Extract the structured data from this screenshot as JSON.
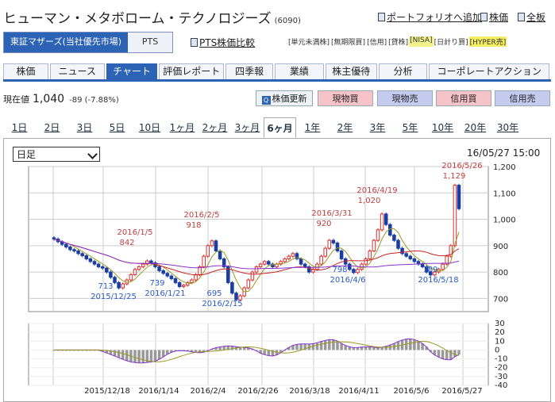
{
  "header": {
    "title": "ヒューマン・メタボローム・テクノロジーズ",
    "code": "(6090)",
    "links": [
      {
        "label": "ポートフォリオへ追加"
      },
      {
        "label": "株価"
      },
      {
        "label": "全板"
      }
    ]
  },
  "market_tabs": {
    "market": "東証マザーズ(当社優先市場)",
    "pts": "PTS"
  },
  "pts_link": "PTS株価比較",
  "badges": [
    "[単元未満株]",
    "[無期限買]",
    "[信用]",
    "[貸株]",
    "[NISA]",
    "[日計り買]",
    "[HYPER売]"
  ],
  "main_tabs": [
    "株価",
    "ニュース",
    "チャート",
    "評価レポート",
    "四季報",
    "業績",
    "株主優待",
    "分析",
    "コーポレートアクション"
  ],
  "active_main_tab": "チャート",
  "price": {
    "label": "現在値",
    "value": "1,040",
    "change": "-89 (-7.88%)"
  },
  "actions": {
    "update": "株価更新",
    "spot_buy": "現物買",
    "spot_sell": "現物売",
    "margin_buy": "信用買",
    "margin_sell": "信用売"
  },
  "period_tabs": [
    "1日",
    "2日",
    "3日",
    "5日",
    "10日",
    "1ヶ月",
    "2ヶ月",
    "3ヶ月",
    "6ヶ月",
    "1年",
    "2年",
    "3年",
    "5年",
    "10年",
    "20年",
    "30年"
  ],
  "active_period": "6ヶ月",
  "chart_controls": {
    "foot": "日足",
    "datetime": "16/05/27 15:00"
  },
  "chart_data": [
    {
      "type": "candlestick",
      "yticks": [
        700,
        800,
        900,
        1000,
        1100,
        1200
      ],
      "ylim": [
        650,
        1200
      ],
      "annotations": [
        {
          "date": "2016/1/5",
          "value": 842
        },
        {
          "date": "2016/2/5",
          "value": 918
        },
        {
          "date": "2016/3/31",
          "value": 920
        },
        {
          "date": "2016/4/19",
          "value": 1020
        },
        {
          "date": "2016/5/26",
          "value": 1129
        },
        {
          "date": "2015/12/25",
          "value": 713
        },
        {
          "date": "2016/1/21",
          "value": 739
        },
        {
          "date": "2016/2/15",
          "value": 695
        },
        {
          "date": "2016/4/6",
          "value": 798
        },
        {
          "date": "2016/5/18",
          "value": 789
        }
      ],
      "series": [
        {
          "values": [
            925,
            915,
            905,
            895,
            885,
            880,
            870,
            862,
            850,
            840,
            830,
            820,
            815,
            800,
            780,
            760,
            740,
            755,
            770,
            790,
            810,
            820,
            830,
            842,
            835,
            820,
            805,
            795,
            785,
            775,
            760,
            745,
            750,
            760,
            770,
            790,
            820,
            860,
            900,
            918,
            880,
            850,
            820,
            760,
            720,
            695,
            710,
            740,
            770,
            800,
            820,
            830,
            840,
            830,
            820,
            830,
            840,
            850,
            860,
            870,
            850,
            830,
            820,
            800,
            810,
            830,
            860,
            890,
            920,
            910,
            880,
            850,
            830,
            810,
            798,
            810,
            830,
            850,
            880,
            920,
            960,
            1020,
            980,
            940,
            920,
            890,
            870,
            860,
            850,
            840,
            830,
            820,
            800,
            789,
            800,
            810,
            830,
            860,
            900,
            1129,
            1040
          ]
        }
      ]
    },
    {
      "type": "bar",
      "yticks": [
        30,
        20,
        10,
        0,
        -10,
        -20,
        -30,
        -40
      ],
      "ylim": [
        -40,
        30
      ],
      "x_labels": [
        "2015/12/18",
        "2016/1/14",
        "2016/2/4",
        "2016/2/26",
        "2016/3/18",
        "2016/4/11",
        "2016/5/6",
        "2016/5/27"
      ]
    }
  ],
  "colors": {
    "tab_active": "#2c63b4",
    "up": "#d63030",
    "down": "#1a3fa3",
    "ma_short": "#cc2222",
    "ma_mid": "#8833cc",
    "ma_long": "#999922",
    "annotation_high": "#c04040",
    "annotation_low": "#2a58c8"
  }
}
